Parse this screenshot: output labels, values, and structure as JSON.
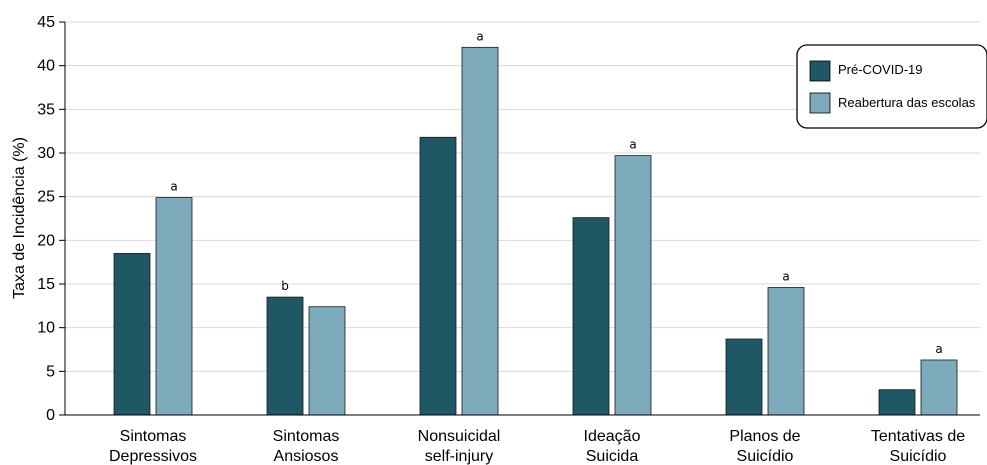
{
  "chart_data": {
    "type": "bar",
    "ylabel": "Taxa de Incidência (%)",
    "ylim": [
      0,
      45
    ],
    "yticks": [
      0,
      5,
      10,
      15,
      20,
      25,
      30,
      35,
      40,
      45
    ],
    "grid": "horizontal",
    "legend_position": "top-right",
    "categories": [
      [
        "Sintomas",
        "Depressivos"
      ],
      [
        "Sintomas",
        "Ansiosos"
      ],
      [
        "Nonsuicidal",
        "self-injury"
      ],
      [
        "Ideação",
        "Suicida"
      ],
      [
        "Planos de",
        "Suicídio"
      ],
      [
        "Tentativas de",
        "Suicídio"
      ]
    ],
    "series": [
      {
        "name": "Pré-COVID-19",
        "color": "#1f5764",
        "values": [
          18.5,
          13.5,
          31.8,
          22.6,
          8.7,
          2.9
        ]
      },
      {
        "name": "Reabertura das escolas",
        "color": "#7eabbb",
        "values": [
          24.9,
          12.4,
          42.1,
          29.7,
          14.6,
          6.3
        ]
      }
    ],
    "annotations": [
      "a",
      "b",
      "a",
      "a",
      "a",
      "a"
    ]
  }
}
